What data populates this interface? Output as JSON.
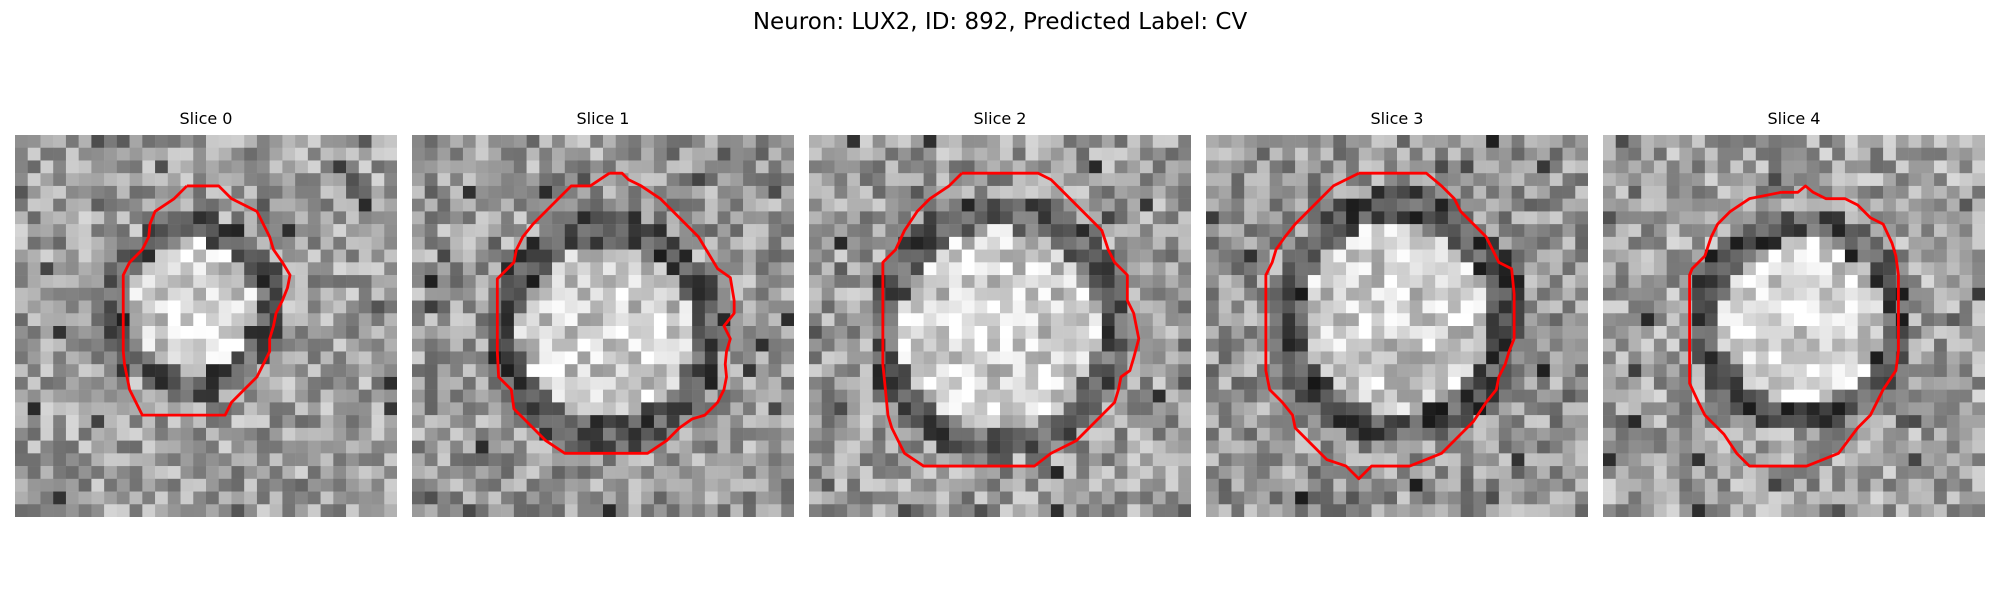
{
  "figure": {
    "title": "Neuron: LUX2, ID: 892, Predicted Label: CV",
    "outline_color": "#ff0000"
  },
  "panels": [
    {
      "title": "Slice 0"
    },
    {
      "title": "Slice 1"
    },
    {
      "title": "Slice 2"
    },
    {
      "title": "Slice 3"
    },
    {
      "title": "Slice 4"
    }
  ]
}
